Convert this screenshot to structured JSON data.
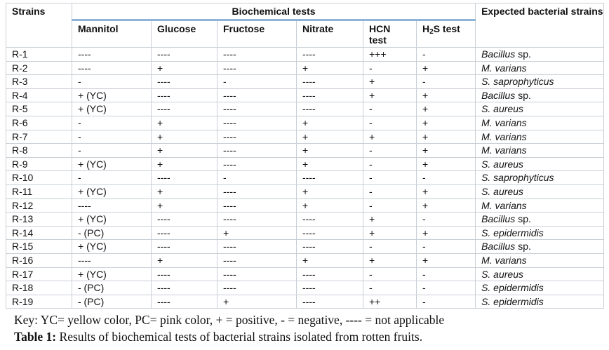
{
  "table": {
    "header": {
      "strains": "Strains",
      "group": "Biochemical tests",
      "expected": "Expected bacterial strains",
      "tests": [
        "Mannitol",
        "Glucose",
        "Fructose",
        "Nitrate",
        "HCN test",
        "H2S test"
      ]
    },
    "rows": [
      {
        "strain": "R-1",
        "mannitol": "----",
        "glucose": "----",
        "fructose": "----",
        "nitrate": "----",
        "hcn": "+++",
        "h2s": "-",
        "genus": "Bacillus",
        "suffix": " sp."
      },
      {
        "strain": "R-2",
        "mannitol": "----",
        "glucose": "+",
        "fructose": "----",
        "nitrate": "+",
        "hcn": "-",
        "h2s": "+",
        "genus": "M. varians",
        "suffix": ""
      },
      {
        "strain": "R-3",
        "mannitol": "-",
        "glucose": "----",
        "fructose": "-",
        "nitrate": "----",
        "hcn": "+",
        "h2s": "-",
        "genus": "S. saprophyticus",
        "suffix": ""
      },
      {
        "strain": "R-4",
        "mannitol": "+ (YC)",
        "glucose": "----",
        "fructose": "----",
        "nitrate": "----",
        "hcn": "+",
        "h2s": "+",
        "genus": "Bacillus",
        "suffix": " sp."
      },
      {
        "strain": "R-5",
        "mannitol": "+ (YC)",
        "glucose": "----",
        "fructose": "----",
        "nitrate": "----",
        "hcn": "-",
        "h2s": "+",
        "genus": "S. aureus",
        "suffix": ""
      },
      {
        "strain": "R-6",
        "mannitol": "-",
        "glucose": "+",
        "fructose": "----",
        "nitrate": "+",
        "hcn": "-",
        "h2s": "+",
        "genus": "M. varians",
        "suffix": ""
      },
      {
        "strain": "R-7",
        "mannitol": "-",
        "glucose": "+",
        "fructose": "----",
        "nitrate": "+",
        "hcn": "+",
        "h2s": "+",
        "genus": "M. varians",
        "suffix": ""
      },
      {
        "strain": "R-8",
        "mannitol": "-",
        "glucose": "+",
        "fructose": "----",
        "nitrate": "+",
        "hcn": "-",
        "h2s": "+",
        "genus": "M. varians",
        "suffix": ""
      },
      {
        "strain": "R-9",
        "mannitol": "+ (YC)",
        "glucose": "+",
        "fructose": "----",
        "nitrate": "+",
        "hcn": "-",
        "h2s": "+",
        "genus": "S. aureus",
        "suffix": ""
      },
      {
        "strain": "R-10",
        "mannitol": "-",
        "glucose": "----",
        "fructose": "-",
        "nitrate": "----",
        "hcn": "-",
        "h2s": "-",
        "genus": "S. saprophyticus",
        "suffix": ""
      },
      {
        "strain": "R-11",
        "mannitol": "+ (YC)",
        "glucose": "+",
        "fructose": "----",
        "nitrate": "+",
        "hcn": "-",
        "h2s": "+",
        "genus": "S. aureus",
        "suffix": ""
      },
      {
        "strain": "R-12",
        "mannitol": "----",
        "glucose": "+",
        "fructose": "----",
        "nitrate": "+",
        "hcn": "-",
        "h2s": "+",
        "genus": "M. varians",
        "suffix": ""
      },
      {
        "strain": "R-13",
        "mannitol": "+ (YC)",
        "glucose": "----",
        "fructose": "----",
        "nitrate": "----",
        "hcn": "+",
        "h2s": "-",
        "genus": "Bacillus",
        "suffix": " sp."
      },
      {
        "strain": "R-14",
        "mannitol": "- (PC)",
        "glucose": "----",
        "fructose": "+",
        "nitrate": "----",
        "hcn": "+",
        "h2s": "+",
        "genus": "S. epidermidis",
        "suffix": ""
      },
      {
        "strain": "R-15",
        "mannitol": "+ (YC)",
        "glucose": "----",
        "fructose": "----",
        "nitrate": "----",
        "hcn": "-",
        "h2s": "-",
        "genus": "Bacillus",
        "suffix": " sp."
      },
      {
        "strain": "R-16",
        "mannitol": "----",
        "glucose": "+",
        "fructose": "----",
        "nitrate": "+",
        "hcn": "+",
        "h2s": "+",
        "genus": "M. varians",
        "suffix": ""
      },
      {
        "strain": "R-17",
        "mannitol": "+ (YC)",
        "glucose": "----",
        "fructose": "----",
        "nitrate": "----",
        "hcn": "-",
        "h2s": "-",
        "genus": "S. aureus",
        "suffix": ""
      },
      {
        "strain": "R-18",
        "mannitol": "- (PC)",
        "glucose": "----",
        "fructose": "----",
        "nitrate": "----",
        "hcn": "-",
        "h2s": "-",
        "genus": "S. epidermidis",
        "suffix": ""
      },
      {
        "strain": "R-19",
        "mannitol": "- (PC)",
        "glucose": "----",
        "fructose": "+",
        "nitrate": "----",
        "hcn": "++",
        "h2s": "-",
        "genus": "S. epidermidis",
        "suffix": ""
      }
    ]
  },
  "key": "Key: YC= yellow color, PC= pink color, + = positive, - = negative, ---- = not applicable",
  "caption": {
    "label": "Table 1:",
    "text": " Results of biochemical tests of bacterial strains isolated from rotten fruits."
  },
  "colors": {
    "header_rule": "#8eb3d9",
    "grid": "#c9cfd6"
  }
}
